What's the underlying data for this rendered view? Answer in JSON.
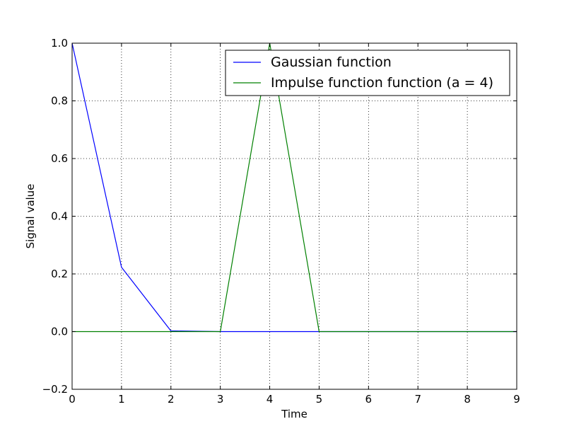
{
  "chart_data": {
    "type": "line",
    "title": "",
    "xlabel": "Time",
    "ylabel": "Signal value",
    "xlim": [
      0,
      9
    ],
    "ylim": [
      -0.2,
      1.0
    ],
    "xticks": [
      0,
      1,
      2,
      3,
      4,
      5,
      6,
      7,
      8,
      9
    ],
    "xtick_labels": [
      "0",
      "1",
      "2",
      "3",
      "4",
      "5",
      "6",
      "7",
      "8",
      "9"
    ],
    "yticks": [
      -0.2,
      0.0,
      0.2,
      0.4,
      0.6,
      0.8,
      1.0
    ],
    "ytick_labels": [
      "−0.2",
      "0.0",
      "0.2",
      "0.4",
      "0.6",
      "0.8",
      "1.0"
    ],
    "grid": true,
    "legend_position": "top-right",
    "x": [
      0,
      1,
      2,
      3,
      4,
      5,
      6,
      7,
      8,
      9
    ],
    "series": [
      {
        "name": "Gaussian function",
        "color": "#0000ff",
        "values": [
          1.0,
          0.2231,
          0.0025,
          0.0,
          0.0,
          0.0,
          0.0,
          0.0,
          0.0,
          0.0
        ]
      },
      {
        "name": "Impulse function function (a = 4)",
        "color": "#008000",
        "values": [
          0.0,
          0.0,
          0.0,
          0.0,
          1.0,
          0.0,
          0.0,
          0.0,
          0.0,
          0.0
        ]
      }
    ]
  }
}
